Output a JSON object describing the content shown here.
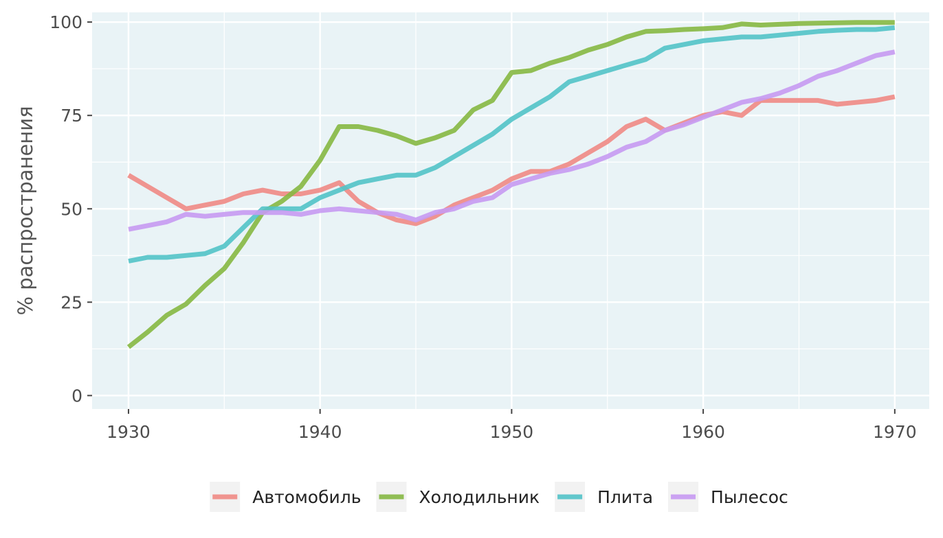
{
  "chart_data": {
    "type": "line",
    "title": "",
    "xlabel": "",
    "ylabel": "% распространения",
    "xlim": [
      1928.1,
      1971.8
    ],
    "ylim": [
      -3.6,
      102.6
    ],
    "x_ticks": [
      1930,
      1940,
      1950,
      1960,
      1970
    ],
    "y_ticks": [
      0,
      25,
      50,
      75,
      100
    ],
    "x_tick_labels": [
      "1930",
      "1940",
      "1950",
      "1960",
      "1970"
    ],
    "y_tick_labels": [
      "0",
      "25",
      "50",
      "75",
      "100"
    ],
    "grid": true,
    "legend_position": "bottom",
    "colors": {
      "panel_background": "#e9f3f6",
      "gridline": "#ffffff"
    },
    "x": [
      1930,
      1931,
      1932,
      1933,
      1934,
      1935,
      1936,
      1937,
      1938,
      1939,
      1940,
      1941,
      1942,
      1943,
      1944,
      1945,
      1946,
      1947,
      1948,
      1949,
      1950,
      1951,
      1952,
      1953,
      1954,
      1955,
      1956,
      1957,
      1958,
      1959,
      1960,
      1961,
      1962,
      1963,
      1964,
      1965,
      1966,
      1967,
      1968,
      1969,
      1970
    ],
    "series": [
      {
        "name": "Автомобиль",
        "color": "#f08a85",
        "values": [
          59,
          56,
          53,
          50,
          51,
          52,
          54,
          55,
          54,
          54,
          55,
          57,
          52,
          49,
          47,
          46,
          48,
          51,
          53,
          55,
          58,
          60,
          60,
          62,
          65,
          68,
          72,
          74,
          71,
          73,
          75,
          76,
          75,
          79,
          79,
          79,
          79,
          78,
          78.5,
          79,
          80
        ]
      },
      {
        "name": "Холодильник",
        "color": "#86b843",
        "values": [
          13,
          17,
          21.5,
          24.5,
          29.5,
          34,
          41,
          49,
          52,
          56,
          63,
          72,
          72,
          71,
          69.5,
          67.5,
          69,
          71,
          76.5,
          79,
          86.5,
          87,
          89,
          90.5,
          92.5,
          94,
          96,
          97.5,
          97.7,
          98,
          98.2,
          98.5,
          99.5,
          99.2,
          99.4,
          99.6,
          99.7,
          99.8,
          99.9,
          99.9,
          99.9
        ]
      },
      {
        "name": "Плита",
        "color": "#52c3c8",
        "values": [
          36,
          37,
          37,
          37.5,
          38,
          40,
          45,
          50,
          50,
          50,
          53,
          55,
          57,
          58,
          59,
          59,
          61,
          64,
          67,
          70,
          74,
          77,
          80,
          84,
          85.5,
          87,
          88.5,
          90,
          93,
          94,
          95,
          95.5,
          96,
          96,
          96.5,
          97,
          97.5,
          97.8,
          98,
          98,
          98.5
        ]
      },
      {
        "name": "Пылесос",
        "color": "#c79af2",
        "values": [
          44.5,
          45.5,
          46.5,
          48.5,
          48,
          48.5,
          49,
          49,
          49,
          48.5,
          49.5,
          50,
          49.5,
          49,
          48.5,
          47,
          49,
          50,
          52,
          53,
          56.5,
          58,
          59.5,
          60.5,
          62,
          64,
          66.5,
          68,
          71,
          72.5,
          74.5,
          76.5,
          78.5,
          79.5,
          81,
          83,
          85.5,
          87,
          89,
          91,
          92
        ]
      }
    ]
  }
}
